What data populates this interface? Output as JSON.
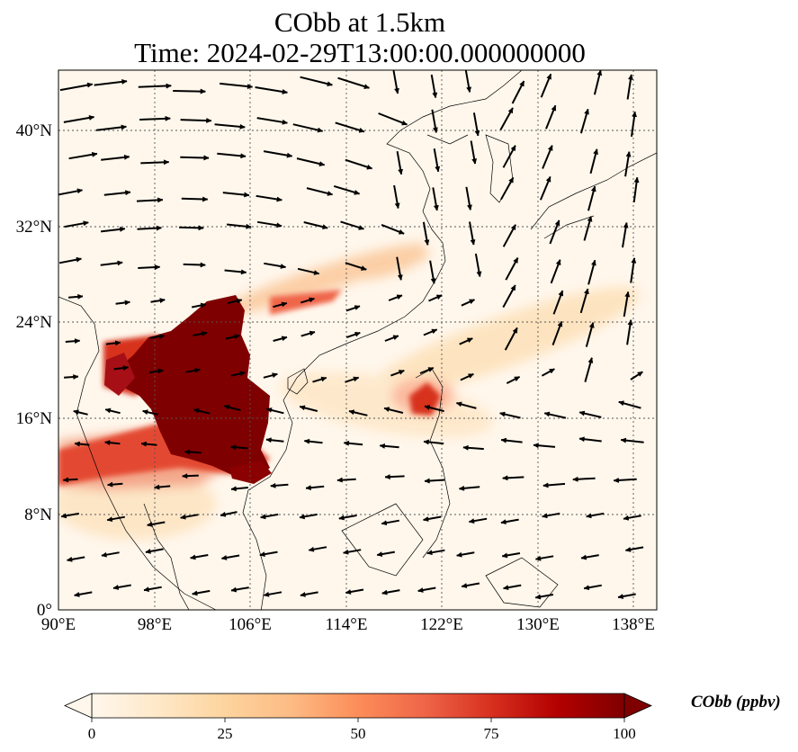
{
  "title_line1": "CObb at 1.5km",
  "title_line2": "Time: 2024-02-29T13:00:00.000000000",
  "map": {
    "projection": "PlateCarree",
    "lon_range": [
      90,
      140
    ],
    "lat_range": [
      0,
      45
    ],
    "gridlines": "dotted",
    "x_ticks": [
      "90°E",
      "98°E",
      "106°E",
      "114°E",
      "122°E",
      "130°E",
      "138°E"
    ],
    "x_tick_values": [
      90,
      98,
      106,
      114,
      122,
      130,
      138
    ],
    "y_ticks": [
      "0°",
      "8°N",
      "16°N",
      "24°N",
      "32°N",
      "40°N"
    ],
    "y_tick_values": [
      0,
      8,
      16,
      24,
      32,
      40
    ]
  },
  "colorbar": {
    "label": "CObb (ppbv)",
    "colormap": "OrRd",
    "min": 0,
    "max": 100,
    "extend": "both",
    "ticks": [
      "0",
      "25",
      "50",
      "75",
      "100"
    ],
    "tick_values": [
      0,
      25,
      50,
      75,
      100
    ],
    "colors": [
      "#fff7ec",
      "#fee8c8",
      "#fdd49e",
      "#fdbb84",
      "#fc8d59",
      "#ef6548",
      "#d7301f",
      "#b30000",
      "#7f0000"
    ]
  },
  "colors": {
    "high": "#7f0000",
    "mid": "#d7301f",
    "low": "#fdd49e",
    "background": "#fff7ec",
    "coastline": "#000000"
  }
}
